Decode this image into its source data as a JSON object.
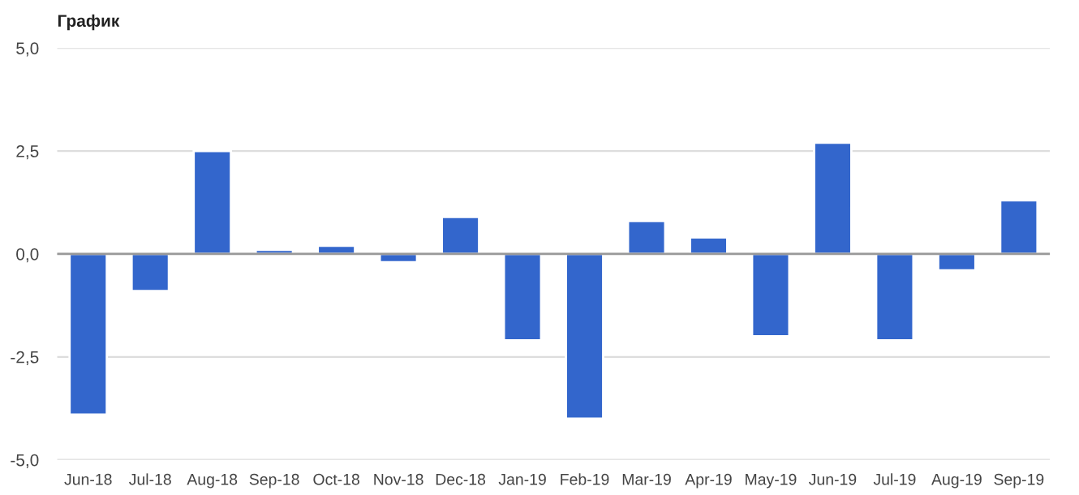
{
  "chart_data": {
    "type": "bar",
    "title": "График",
    "categories": [
      "Jun-18",
      "Jul-18",
      "Aug-18",
      "Sep-18",
      "Oct-18",
      "Nov-18",
      "Dec-18",
      "Jan-19",
      "Feb-19",
      "Mar-19",
      "Apr-19",
      "May-19",
      "Jun-19",
      "Jul-19",
      "Aug-19",
      "Sep-19"
    ],
    "values": [
      -3.9,
      -0.9,
      2.5,
      0.1,
      0.2,
      -0.2,
      0.9,
      -2.1,
      -4.0,
      0.8,
      0.4,
      -2.0,
      2.7,
      -2.1,
      -0.4,
      1.3
    ],
    "color": "#3366cc",
    "ylim": [
      -5,
      5
    ],
    "yticks": [
      {
        "value": -5,
        "label": "-5,0"
      },
      {
        "value": -2.5,
        "label": "-2,5"
      },
      {
        "value": 0,
        "label": "0,0"
      },
      {
        "value": 2.5,
        "label": "2,5"
      },
      {
        "value": 5,
        "label": "5,0"
      }
    ],
    "grid": "y"
  }
}
